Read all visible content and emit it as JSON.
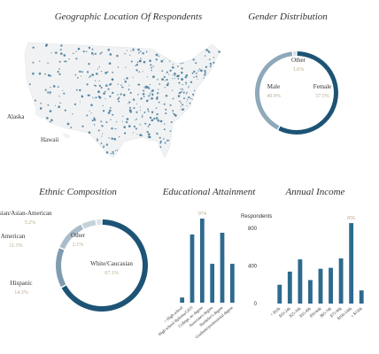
{
  "chart_data": [
    {
      "type": "map",
      "title": "Geographic Location Of Respondents",
      "labels": [
        "Alaska",
        "Hawaii"
      ],
      "color": "#2e6a8e"
    },
    {
      "type": "donut",
      "title": "Gender Distribution",
      "categories": [
        "Female",
        "Male",
        "Other"
      ],
      "values": [
        57.5,
        40.9,
        1.6
      ],
      "value_labels": [
        "57.5%",
        "40.9%",
        "1.6%"
      ],
      "colors": [
        "#1d5476",
        "#8fa8ba",
        "#d5dee4"
      ]
    },
    {
      "type": "donut",
      "title": "Ethnic Composition",
      "categories": [
        "White/Caucasian",
        "Hispanic",
        "African American",
        "Asian/Asian-American",
        "Other"
      ],
      "values": [
        67.1,
        14.3,
        11.3,
        5.2,
        2.1
      ],
      "value_labels": [
        "67.1%",
        "14.3%",
        "11.3%",
        "5.2%",
        "2.1%"
      ],
      "colors": [
        "#1d5476",
        "#7f9bb0",
        "#a9bcc9",
        "#c6d2da",
        "#dbe3e8"
      ]
    },
    {
      "type": "bar",
      "title": "Educational Attainment",
      "categories": [
        "< High school",
        "High school diploma/GED",
        "College, no degree",
        "Associate's degree",
        "Bachelor's degree",
        "Graduate/professional degree"
      ],
      "values": [
        60,
        790,
        974,
        450,
        810,
        450
      ],
      "value_labels": [
        null,
        null,
        "974",
        null,
        null,
        null
      ],
      "color": "#2e6a8e"
    },
    {
      "type": "bar",
      "title": "Annual Income",
      "ylabel": "Respondents",
      "categories": [
        "< $10k",
        "$10-24k",
        "$25-34k",
        "$35-49k",
        "$50-64k",
        "$65-74k",
        "$75-99k",
        "$100-149k",
        "≥ $150k"
      ],
      "values": [
        200,
        340,
        470,
        250,
        370,
        380,
        480,
        856,
        140
      ],
      "value_labels": [
        null,
        null,
        null,
        null,
        null,
        null,
        null,
        "856",
        null
      ],
      "ylim": [
        0,
        900
      ],
      "yticks": [
        0,
        400,
        800
      ],
      "color": "#2e6a8e"
    }
  ]
}
